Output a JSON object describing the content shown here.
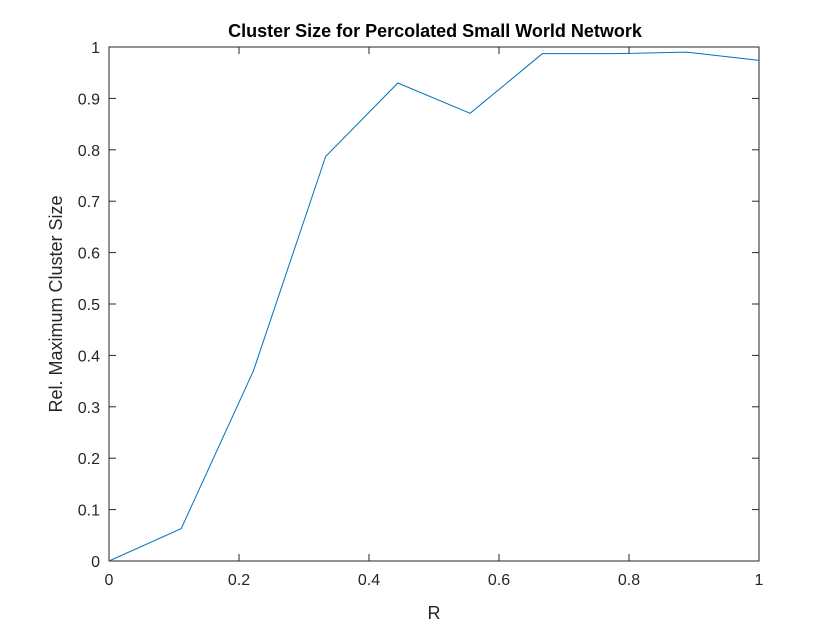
{
  "chart_data": {
    "type": "line",
    "title": "Cluster Size for Percolated Small World Network",
    "xlabel": "R",
    "ylabel": "Rel. Maximum Cluster Size",
    "xlim": [
      0,
      1
    ],
    "ylim": [
      0,
      1
    ],
    "xticks": [
      0,
      0.2,
      0.4,
      0.6,
      0.8,
      1
    ],
    "xtick_labels": [
      "0",
      "0.2",
      "0.4",
      "0.6",
      "0.8",
      "1"
    ],
    "yticks": [
      0,
      0.1,
      0.2,
      0.3,
      0.4,
      0.5,
      0.6,
      0.7,
      0.8,
      0.9,
      1
    ],
    "ytick_labels": [
      "0",
      "0.1",
      "0.2",
      "0.3",
      "0.4",
      "0.5",
      "0.6",
      "0.7",
      "0.8",
      "0.9",
      "1"
    ],
    "grid": false,
    "series": [
      {
        "name": "cluster size",
        "color": "#0072BD",
        "x": [
          0,
          0.1111,
          0.2222,
          0.3333,
          0.4444,
          0.5556,
          0.6667,
          0.7778,
          0.8889,
          1
        ],
        "y": [
          0.0,
          0.063,
          0.37,
          0.787,
          0.93,
          0.871,
          0.987,
          0.987,
          0.99,
          0.974
        ]
      }
    ]
  }
}
